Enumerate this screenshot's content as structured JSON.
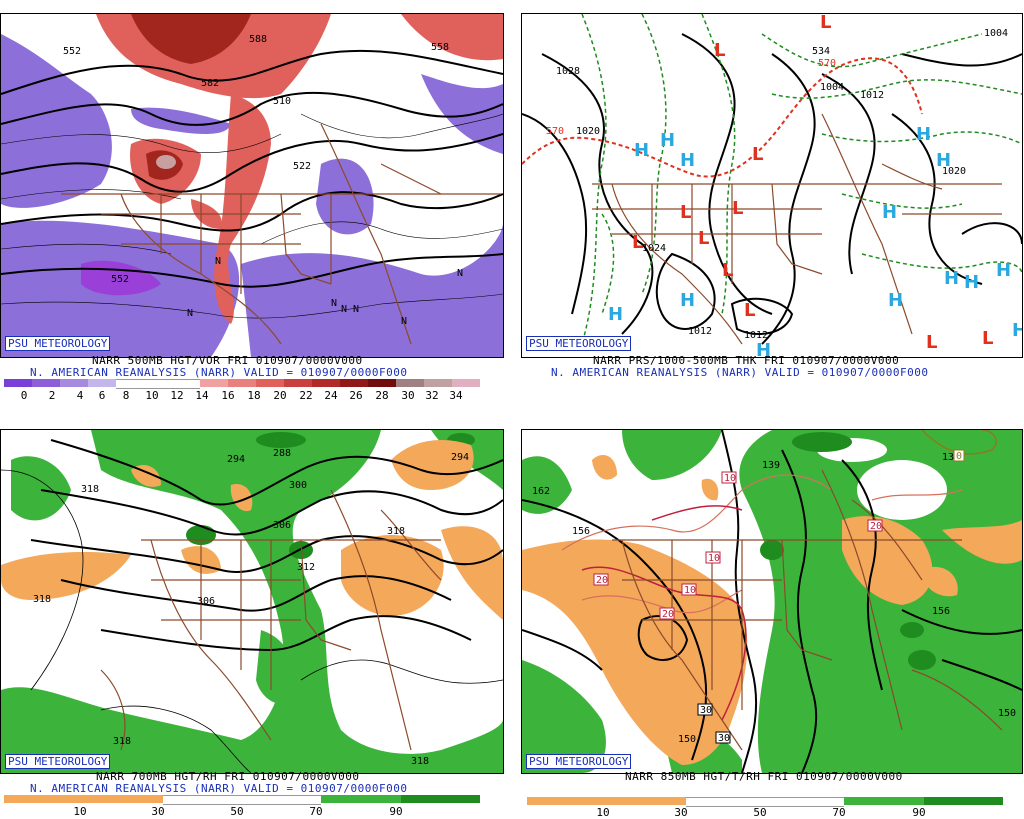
{
  "panels": [
    {
      "badge": "PSU METEOROLOGY",
      "title_line1": "NARR 500MB HGT/VOR FRI 010907/0000V000",
      "title_line2": "N. AMERICAN REANALYSIS (NARR) VALID = 010907/0000F000",
      "colorbar_ticks": [
        "0",
        "2",
        "4",
        "6",
        "8",
        "10",
        "12",
        "14",
        "16",
        "18",
        "20",
        "22",
        "24",
        "26",
        "28",
        "30",
        "32",
        "34"
      ],
      "contour_labels": [
        "552",
        "582",
        "588",
        "558",
        "510",
        "522",
        "552",
        "N",
        "N",
        "N",
        "N",
        "N",
        "N",
        "N"
      ]
    },
    {
      "badge": "PSU METEOROLOGY",
      "title_line1": "NARR PRS/1000-500MB THK FRI 010907/0000V000",
      "title_line2": "N. AMERICAN REANALYSIS (NARR) VALID = 010907/0000F000",
      "contour_labels": [
        "1028",
        "1020",
        "570",
        "1004",
        "1012",
        "1004",
        "1020",
        "1012",
        "1012",
        "534",
        "570",
        "1024"
      ],
      "pressure_centers": [
        "L",
        "L",
        "L",
        "L",
        "L",
        "L",
        "L",
        "L",
        "L",
        "L",
        "H",
        "H",
        "H",
        "H",
        "H",
        "H",
        "H",
        "H",
        "H",
        "H",
        "H",
        "H"
      ]
    },
    {
      "badge": "PSU METEOROLOGY",
      "title_line1": "NARR 700MB HGT/RH FRI 010907/0000V000",
      "title_line2": "N. AMERICAN REANALYSIS (NARR) VALID = 010907/0000F000",
      "colorbar_ticks": [
        "10",
        "30",
        "50",
        "70",
        "90"
      ],
      "contour_labels": [
        "318",
        "294",
        "288",
        "300",
        "294",
        "306",
        "312",
        "318",
        "306",
        "318",
        "318",
        "318"
      ]
    },
    {
      "badge": "PSU METEOROLOGY",
      "title_line1": "NARR 850MB HGT/T/RH FRI 010907/0000V000",
      "colorbar_ticks": [
        "10",
        "30",
        "50",
        "70",
        "90"
      ],
      "contour_labels": [
        "162",
        "156",
        "139",
        "138",
        "150",
        "156",
        "150",
        "20",
        "20",
        "10",
        "10",
        "10",
        "20",
        "30",
        "30",
        "20",
        "0"
      ]
    }
  ],
  "colors": {
    "border": "#8b4a2b",
    "vort_blue": "#8c6fd9",
    "vort_red": "#e0605c",
    "rh_green": "#3cb43c",
    "rh_orange": "#f4a85a",
    "text_blue": "#1a2fb8",
    "low_red": "#e0301e",
    "high_blue": "#2aa9e0"
  }
}
